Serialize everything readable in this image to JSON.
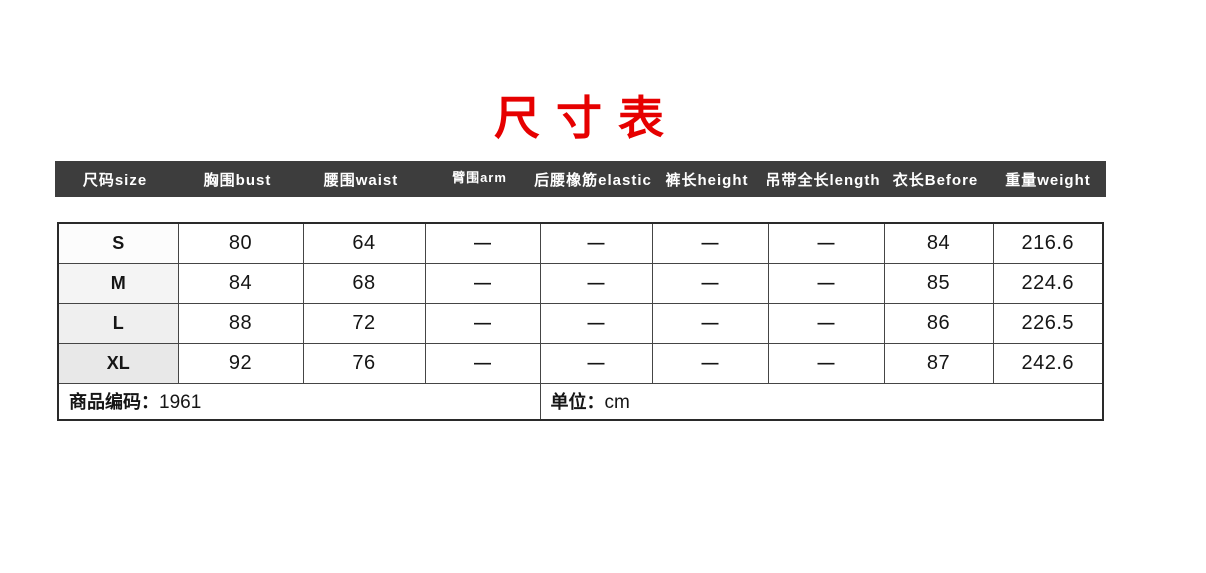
{
  "title": "尺寸表",
  "chart_data": {
    "type": "table",
    "title": "尺寸表",
    "unit": "cm",
    "product_code": "1961",
    "columns": [
      "尺码size",
      "胸围bust",
      "腰围waist",
      "臂围arm",
      "后腰橡筋elastic",
      "裤长height",
      "吊带全长length",
      "衣长Before",
      "重量weight"
    ],
    "rows": [
      [
        "S",
        "80",
        "64",
        "—",
        "—",
        "—",
        "—",
        "84",
        "216.6"
      ],
      [
        "M",
        "84",
        "68",
        "—",
        "—",
        "—",
        "—",
        "85",
        "224.6"
      ],
      [
        "L",
        "88",
        "72",
        "—",
        "—",
        "—",
        "—",
        "86",
        "226.5"
      ],
      [
        "XL",
        "92",
        "76",
        "—",
        "—",
        "—",
        "—",
        "87",
        "242.6"
      ]
    ]
  },
  "footer": {
    "code_label": "商品编码：",
    "code_value": "1961",
    "unit_label": "单位：",
    "unit_value": "cm"
  },
  "colors": {
    "title_red": "#e60000",
    "header_bg": "#3d3d3d",
    "header_text": "#ffffff",
    "grid_line": "#454545",
    "outer_border": "#2a2a2a",
    "size_col_bg": [
      "#fcfcfc",
      "#f4f4f4",
      "#efefef",
      "#e8e8e8"
    ]
  }
}
